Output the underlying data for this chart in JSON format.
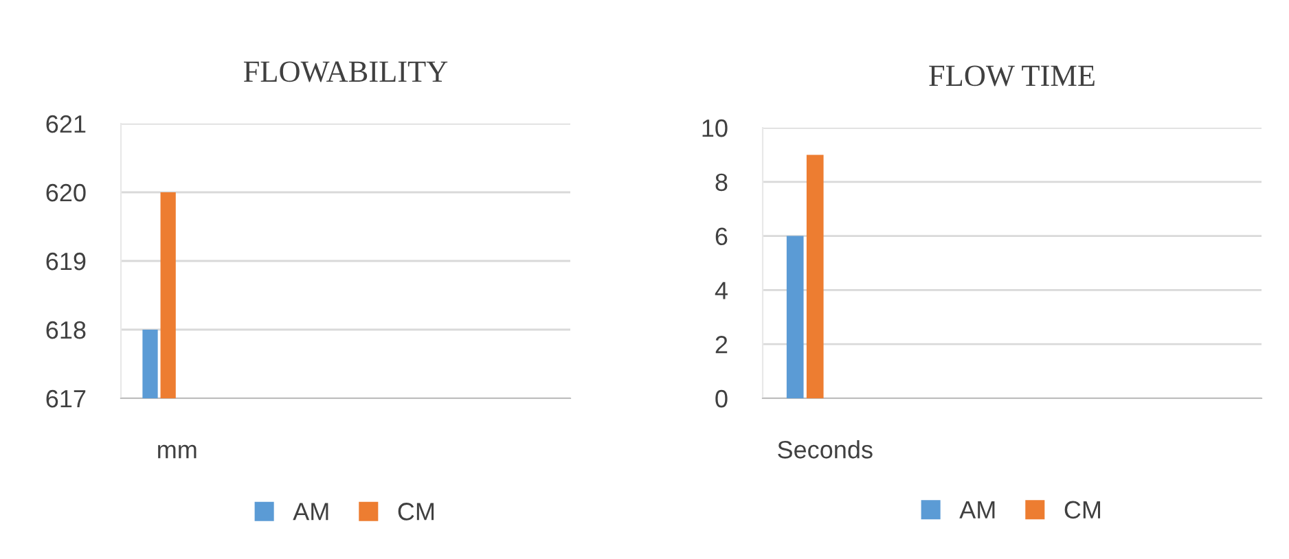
{
  "chart_data": [
    {
      "type": "bar",
      "title": "FLOWABILITY",
      "categories": [
        "mm",
        null,
        null,
        null
      ],
      "series": [
        {
          "name": "AM",
          "color": "#5b9bd5",
          "values": [
            618,
            null,
            null,
            null
          ]
        },
        {
          "name": "CM",
          "color": "#ed7d31",
          "values": [
            620,
            null,
            null,
            null
          ]
        }
      ],
      "ylim": [
        617,
        621
      ],
      "yticks": [
        617,
        618,
        619,
        620,
        621
      ],
      "grid": "y",
      "legend": "bottom"
    },
    {
      "type": "bar",
      "title": "FLOW TIME",
      "categories": [
        "Seconds",
        null,
        null,
        null
      ],
      "series": [
        {
          "name": "AM",
          "color": "#5b9bd5",
          "values": [
            6,
            null,
            null,
            null
          ]
        },
        {
          "name": "CM",
          "color": "#ed7d31",
          "values": [
            9,
            null,
            null,
            null
          ]
        }
      ],
      "ylim": [
        0,
        10
      ],
      "yticks": [
        0,
        2,
        4,
        6,
        8,
        10
      ],
      "grid": "y",
      "legend": "bottom"
    }
  ]
}
